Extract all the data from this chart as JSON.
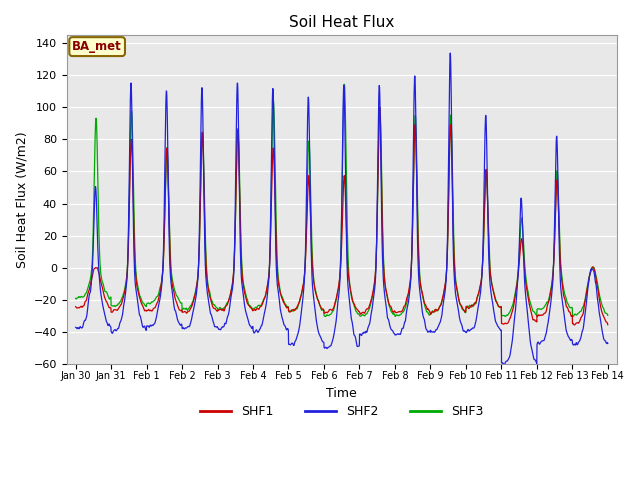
{
  "title": "Soil Heat Flux",
  "ylabel": "Soil Heat Flux (W/m2)",
  "xlabel": "Time",
  "ylim": [
    -60,
    145
  ],
  "yticks": [
    -60,
    -40,
    -20,
    0,
    20,
    40,
    60,
    80,
    100,
    120,
    140
  ],
  "xtick_labels": [
    "Jan 30",
    "Jan 31",
    "Feb 1",
    "Feb 2",
    "Feb 3",
    "Feb 4",
    "Feb 5",
    "Feb 6",
    "Feb 7",
    "Feb 8",
    "Feb 9",
    "Feb 10",
    "Feb 11",
    "Feb 12",
    "Feb 13",
    "Feb 14"
  ],
  "legend_labels": [
    "SHF1",
    "SHF2",
    "SHF3"
  ],
  "line_colors": [
    "#cc0000",
    "#2222dd",
    "#00aa00"
  ],
  "annotation_text": "BA_met",
  "annotation_bg": "#ffffcc",
  "annotation_border": "#886600",
  "plot_bg": "#e8e8e8",
  "shf1_day_peaks": [
    0,
    80,
    75,
    85,
    86,
    75,
    57,
    57,
    100,
    90,
    90,
    62,
    18,
    55,
    0,
    0
  ],
  "shf2_day_peaks": [
    50,
    115,
    112,
    113,
    115,
    112,
    107,
    115,
    114,
    120,
    133,
    97,
    42,
    82,
    0,
    0
  ],
  "shf3_day_peaks": [
    93,
    98,
    75,
    85,
    87,
    104,
    79,
    115,
    100,
    95,
    95,
    58,
    30,
    60,
    0,
    0
  ],
  "shf1_night": [
    -25,
    -27,
    -27,
    -28,
    -27,
    -26,
    -27,
    -28,
    -28,
    -28,
    -28,
    -25,
    -35,
    -30,
    -35,
    -35
  ],
  "shf2_night": [
    -38,
    -40,
    -37,
    -38,
    -38,
    -40,
    -48,
    -50,
    -42,
    -42,
    -40,
    -40,
    -60,
    -47,
    -48,
    -48
  ],
  "shf3_night": [
    -19,
    -24,
    -22,
    -26,
    -26,
    -25,
    -27,
    -30,
    -30,
    -30,
    -28,
    -25,
    -30,
    -26,
    -30,
    -30
  ]
}
